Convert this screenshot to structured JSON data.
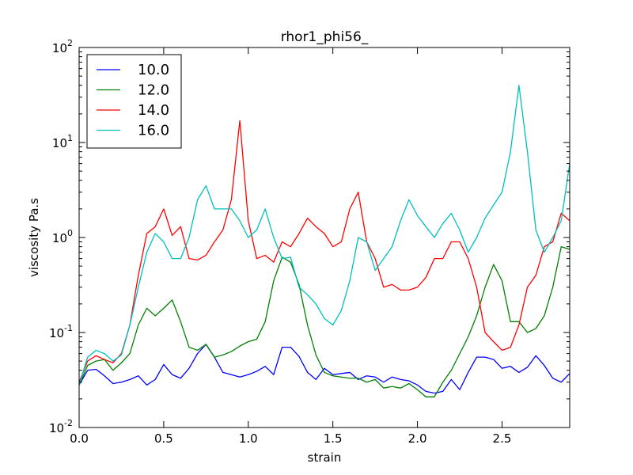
{
  "chart_data": {
    "type": "line",
    "title": "rhor1_phi56_",
    "xlabel": "strain",
    "ylabel": "viscosity Pa.s",
    "xlim": [
      0.0,
      2.9
    ],
    "ylim": [
      0.01,
      100
    ],
    "yscale": "log",
    "grid": false,
    "legend_position": "top-left",
    "x_ticks": [
      "0.0",
      "0.5",
      "1.0",
      "1.5",
      "2.0",
      "2.5"
    ],
    "y_ticks": [
      {
        "base": "10",
        "exp": "-2"
      },
      {
        "base": "10",
        "exp": "-1"
      },
      {
        "base": "10",
        "exp": "0"
      },
      {
        "base": "10",
        "exp": "1"
      },
      {
        "base": "10",
        "exp": "2"
      }
    ],
    "series": [
      {
        "name": "10.0",
        "color": "#0000ff",
        "points": [
          [
            0.0,
            0.028
          ],
          [
            0.05,
            0.04
          ],
          [
            0.1,
            0.041
          ],
          [
            0.15,
            0.035
          ],
          [
            0.2,
            0.029
          ],
          [
            0.25,
            0.03
          ],
          [
            0.3,
            0.032
          ],
          [
            0.35,
            0.035
          ],
          [
            0.4,
            0.028
          ],
          [
            0.45,
            0.032
          ],
          [
            0.5,
            0.046
          ],
          [
            0.55,
            0.036
          ],
          [
            0.6,
            0.033
          ],
          [
            0.65,
            0.042
          ],
          [
            0.7,
            0.06
          ],
          [
            0.75,
            0.075
          ],
          [
            0.8,
            0.055
          ],
          [
            0.85,
            0.038
          ],
          [
            0.9,
            0.036
          ],
          [
            0.95,
            0.034
          ],
          [
            1.0,
            0.036
          ],
          [
            1.05,
            0.039
          ],
          [
            1.1,
            0.044
          ],
          [
            1.15,
            0.036
          ],
          [
            1.2,
            0.07
          ],
          [
            1.25,
            0.07
          ],
          [
            1.3,
            0.056
          ],
          [
            1.35,
            0.038
          ],
          [
            1.4,
            0.032
          ],
          [
            1.45,
            0.042
          ],
          [
            1.5,
            0.036
          ],
          [
            1.55,
            0.037
          ],
          [
            1.6,
            0.038
          ],
          [
            1.65,
            0.032
          ],
          [
            1.7,
            0.035
          ],
          [
            1.75,
            0.034
          ],
          [
            1.8,
            0.03
          ],
          [
            1.85,
            0.034
          ],
          [
            1.9,
            0.032
          ],
          [
            1.95,
            0.031
          ],
          [
            2.0,
            0.028
          ],
          [
            2.05,
            0.024
          ],
          [
            2.1,
            0.023
          ],
          [
            2.15,
            0.024
          ],
          [
            2.2,
            0.032
          ],
          [
            2.25,
            0.025
          ],
          [
            2.3,
            0.038
          ],
          [
            2.35,
            0.055
          ],
          [
            2.4,
            0.055
          ],
          [
            2.45,
            0.052
          ],
          [
            2.5,
            0.042
          ],
          [
            2.55,
            0.044
          ],
          [
            2.6,
            0.038
          ],
          [
            2.65,
            0.043
          ],
          [
            2.7,
            0.057
          ],
          [
            2.75,
            0.045
          ],
          [
            2.8,
            0.033
          ],
          [
            2.85,
            0.03
          ],
          [
            2.9,
            0.037
          ]
        ]
      },
      {
        "name": "12.0",
        "color": "#008000",
        "points": [
          [
            0.0,
            0.028
          ],
          [
            0.05,
            0.045
          ],
          [
            0.1,
            0.05
          ],
          [
            0.15,
            0.052
          ],
          [
            0.2,
            0.04
          ],
          [
            0.25,
            0.048
          ],
          [
            0.3,
            0.06
          ],
          [
            0.35,
            0.12
          ],
          [
            0.4,
            0.18
          ],
          [
            0.45,
            0.15
          ],
          [
            0.5,
            0.18
          ],
          [
            0.55,
            0.22
          ],
          [
            0.6,
            0.13
          ],
          [
            0.65,
            0.07
          ],
          [
            0.7,
            0.065
          ],
          [
            0.75,
            0.075
          ],
          [
            0.8,
            0.055
          ],
          [
            0.85,
            0.058
          ],
          [
            0.9,
            0.063
          ],
          [
            0.95,
            0.072
          ],
          [
            1.0,
            0.08
          ],
          [
            1.05,
            0.085
          ],
          [
            1.1,
            0.13
          ],
          [
            1.15,
            0.35
          ],
          [
            1.2,
            0.62
          ],
          [
            1.25,
            0.55
          ],
          [
            1.3,
            0.32
          ],
          [
            1.35,
            0.12
          ],
          [
            1.4,
            0.058
          ],
          [
            1.45,
            0.038
          ],
          [
            1.5,
            0.035
          ],
          [
            1.55,
            0.034
          ],
          [
            1.6,
            0.033
          ],
          [
            1.65,
            0.033
          ],
          [
            1.7,
            0.03
          ],
          [
            1.75,
            0.032
          ],
          [
            1.8,
            0.026
          ],
          [
            1.85,
            0.027
          ],
          [
            1.9,
            0.026
          ],
          [
            1.95,
            0.029
          ],
          [
            2.0,
            0.025
          ],
          [
            2.05,
            0.021
          ],
          [
            2.1,
            0.021
          ],
          [
            2.15,
            0.03
          ],
          [
            2.2,
            0.04
          ],
          [
            2.25,
            0.06
          ],
          [
            2.3,
            0.09
          ],
          [
            2.35,
            0.15
          ],
          [
            2.4,
            0.3
          ],
          [
            2.45,
            0.52
          ],
          [
            2.5,
            0.35
          ],
          [
            2.55,
            0.13
          ],
          [
            2.6,
            0.13
          ],
          [
            2.65,
            0.1
          ],
          [
            2.7,
            0.11
          ],
          [
            2.75,
            0.15
          ],
          [
            2.8,
            0.3
          ],
          [
            2.85,
            0.8
          ],
          [
            2.9,
            0.75
          ]
        ]
      },
      {
        "name": "14.0",
        "color": "#ff0000",
        "points": [
          [
            0.0,
            0.03
          ],
          [
            0.05,
            0.05
          ],
          [
            0.1,
            0.057
          ],
          [
            0.15,
            0.052
          ],
          [
            0.2,
            0.048
          ],
          [
            0.25,
            0.06
          ],
          [
            0.3,
            0.12
          ],
          [
            0.35,
            0.4
          ],
          [
            0.4,
            1.1
          ],
          [
            0.45,
            1.3
          ],
          [
            0.5,
            2.0
          ],
          [
            0.55,
            1.05
          ],
          [
            0.6,
            1.3
          ],
          [
            0.65,
            0.6
          ],
          [
            0.7,
            0.58
          ],
          [
            0.75,
            0.65
          ],
          [
            0.8,
            0.9
          ],
          [
            0.85,
            1.2
          ],
          [
            0.9,
            2.5
          ],
          [
            0.95,
            17.0
          ],
          [
            1.0,
            1.5
          ],
          [
            1.05,
            0.6
          ],
          [
            1.1,
            0.65
          ],
          [
            1.15,
            0.55
          ],
          [
            1.2,
            0.9
          ],
          [
            1.25,
            0.8
          ],
          [
            1.3,
            1.1
          ],
          [
            1.35,
            1.6
          ],
          [
            1.4,
            1.3
          ],
          [
            1.45,
            1.1
          ],
          [
            1.5,
            0.8
          ],
          [
            1.55,
            0.9
          ],
          [
            1.6,
            2.0
          ],
          [
            1.65,
            3.0
          ],
          [
            1.7,
            0.9
          ],
          [
            1.75,
            0.6
          ],
          [
            1.8,
            0.3
          ],
          [
            1.85,
            0.32
          ],
          [
            1.9,
            0.28
          ],
          [
            1.95,
            0.28
          ],
          [
            2.0,
            0.3
          ],
          [
            2.05,
            0.38
          ],
          [
            2.1,
            0.6
          ],
          [
            2.15,
            0.6
          ],
          [
            2.2,
            0.9
          ],
          [
            2.25,
            0.9
          ],
          [
            2.3,
            0.6
          ],
          [
            2.35,
            0.3
          ],
          [
            2.4,
            0.1
          ],
          [
            2.45,
            0.08
          ],
          [
            2.5,
            0.065
          ],
          [
            2.55,
            0.07
          ],
          [
            2.6,
            0.12
          ],
          [
            2.65,
            0.3
          ],
          [
            2.7,
            0.4
          ],
          [
            2.75,
            0.8
          ],
          [
            2.8,
            0.9
          ],
          [
            2.85,
            1.8
          ],
          [
            2.9,
            1.5
          ]
        ]
      },
      {
        "name": "16.0",
        "color": "#00bfbf",
        "points": [
          [
            0.0,
            0.028
          ],
          [
            0.05,
            0.055
          ],
          [
            0.1,
            0.065
          ],
          [
            0.15,
            0.06
          ],
          [
            0.2,
            0.05
          ],
          [
            0.25,
            0.058
          ],
          [
            0.3,
            0.12
          ],
          [
            0.35,
            0.3
          ],
          [
            0.4,
            0.7
          ],
          [
            0.45,
            1.1
          ],
          [
            0.5,
            0.9
          ],
          [
            0.55,
            0.6
          ],
          [
            0.6,
            0.6
          ],
          [
            0.65,
            1.0
          ],
          [
            0.7,
            2.5
          ],
          [
            0.75,
            3.5
          ],
          [
            0.8,
            2.0
          ],
          [
            0.85,
            2.0
          ],
          [
            0.9,
            2.0
          ],
          [
            0.95,
            1.5
          ],
          [
            1.0,
            1.0
          ],
          [
            1.05,
            1.2
          ],
          [
            1.1,
            2.0
          ],
          [
            1.15,
            1.0
          ],
          [
            1.2,
            0.6
          ],
          [
            1.25,
            0.62
          ],
          [
            1.3,
            0.3
          ],
          [
            1.35,
            0.25
          ],
          [
            1.4,
            0.2
          ],
          [
            1.45,
            0.14
          ],
          [
            1.5,
            0.12
          ],
          [
            1.55,
            0.17
          ],
          [
            1.6,
            0.35
          ],
          [
            1.65,
            1.0
          ],
          [
            1.7,
            0.9
          ],
          [
            1.75,
            0.45
          ],
          [
            1.8,
            0.6
          ],
          [
            1.85,
            0.8
          ],
          [
            1.9,
            1.5
          ],
          [
            1.95,
            2.5
          ],
          [
            2.0,
            1.7
          ],
          [
            2.05,
            1.3
          ],
          [
            2.1,
            1.0
          ],
          [
            2.15,
            1.4
          ],
          [
            2.2,
            1.8
          ],
          [
            2.25,
            1.2
          ],
          [
            2.3,
            0.7
          ],
          [
            2.35,
            1.0
          ],
          [
            2.4,
            1.6
          ],
          [
            2.45,
            2.2
          ],
          [
            2.5,
            3.0
          ],
          [
            2.55,
            8.0
          ],
          [
            2.6,
            40.0
          ],
          [
            2.65,
            8.0
          ],
          [
            2.7,
            1.2
          ],
          [
            2.75,
            0.7
          ],
          [
            2.8,
            1.0
          ],
          [
            2.85,
            1.5
          ],
          [
            2.9,
            6.0
          ]
        ]
      }
    ]
  }
}
